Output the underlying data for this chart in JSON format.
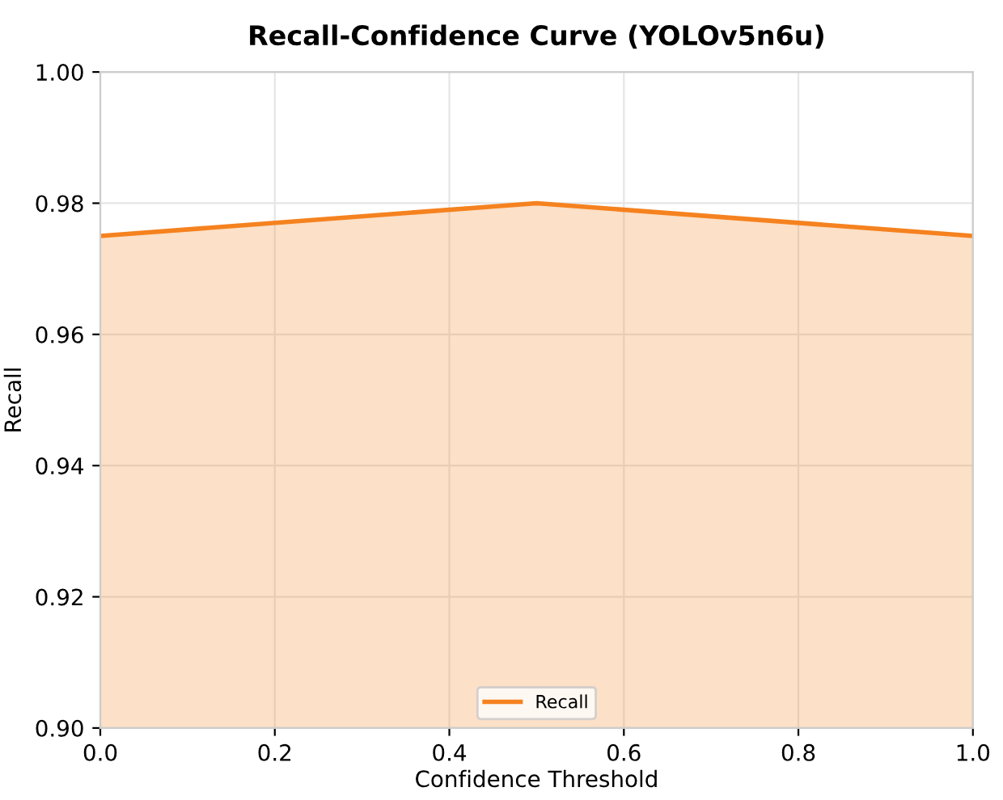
{
  "chart_data": {
    "type": "area",
    "title": "Recall-Confidence Curve (YOLOv5n6u)",
    "xlabel": "Confidence Threshold",
    "ylabel": "Recall",
    "x": [
      0,
      0.5,
      1
    ],
    "series": [
      {
        "name": "Recall",
        "color": "#f5821f",
        "values": [
          0.975,
          0.98,
          0.975
        ]
      }
    ],
    "xlim": [
      0,
      1
    ],
    "xticks": [
      {
        "value": 0,
        "label": "0.0"
      },
      0.2,
      0.4,
      0.6,
      0.8,
      {
        "value": 1,
        "label": "1.0"
      }
    ],
    "ylim": [
      0.9,
      1
    ],
    "yticks": [
      {
        "value": 0.9,
        "label": "0.90"
      },
      0.92,
      0.94,
      0.96,
      0.98,
      {
        "value": 1,
        "label": "1.00"
      }
    ],
    "grid": true,
    "legend": "bottom"
  }
}
